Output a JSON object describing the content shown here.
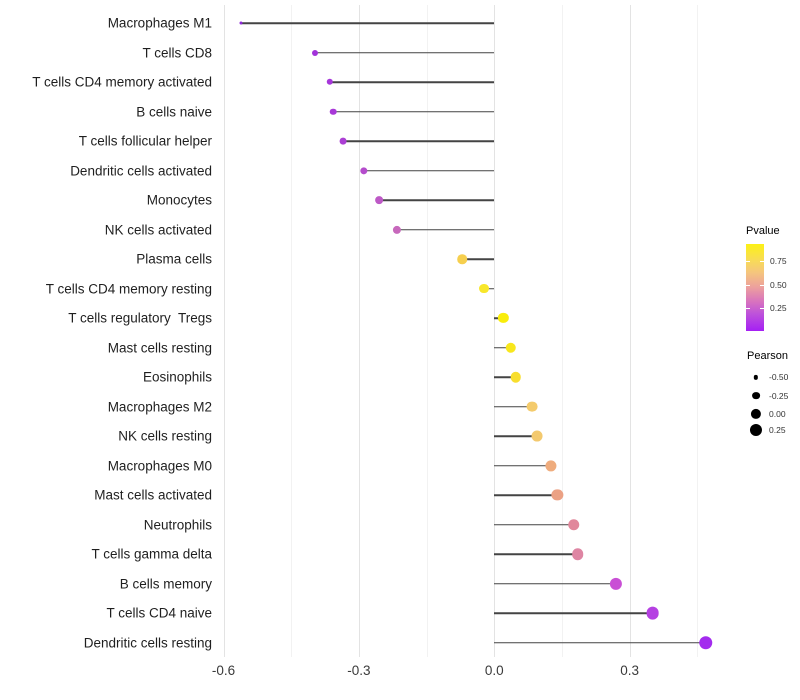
{
  "chart_data": {
    "type": "scatter",
    "variant": "lollipop",
    "title": "",
    "xlabel": "",
    "ylabel": "",
    "grid": true,
    "legend_position": "right",
    "categories": [
      "Macrophages M1",
      "T cells CD8",
      "T cells CD4 memory activated",
      "B cells naive",
      "T cells follicular helper",
      "Dendritic cells activated",
      "Monocytes",
      "NK cells activated",
      "Plasma cells",
      "T cells CD4 memory resting",
      "T cells regulatory  Tregs",
      "Mast cells resting",
      "Eosinophils",
      "Macrophages M2",
      "NK cells resting",
      "Macrophages M0",
      "Mast cells activated",
      "Neutrophils",
      "T cells gamma delta",
      "B cells memory",
      "T cells CD4 naive",
      "Dendritic cells resting"
    ],
    "series": [
      {
        "name": "Pearson",
        "values": [
          -0.562,
          -0.398,
          -0.365,
          -0.357,
          -0.335,
          -0.289,
          -0.256,
          -0.215,
          -0.071,
          -0.022,
          0.02,
          0.037,
          0.047,
          0.083,
          0.095,
          0.125,
          0.14,
          0.176,
          0.185,
          0.27,
          0.351,
          0.469
        ]
      }
    ],
    "point_colors": [
      "#8E28D8",
      "#A232DA",
      "#A637DA",
      "#A838D8",
      "#AB3FD4",
      "#B44CCC",
      "#BD59C6",
      "#C768BC",
      "#F6CF4E",
      "#F8E72B",
      "#F9ED0B",
      "#F8E71C",
      "#F8DE2E",
      "#F4CB6C",
      "#F3C96E",
      "#EFAC7D",
      "#EBA184",
      "#E1879B",
      "#DE85A3",
      "#C94FD5",
      "#B540E2",
      "#A32BEE"
    ],
    "xlim": [
      -0.61,
      0.52
    ],
    "x_major_gridlines": [
      -0.6,
      -0.3,
      0.0,
      0.3
    ],
    "x_minor_gridlines": [
      -0.45,
      -0.15,
      0.15,
      0.45
    ],
    "size_scale": {
      "maps": "Pearson",
      "min_value": -0.56,
      "max_value": 0.47,
      "min_radius_px": 1.5,
      "max_radius_px": 6.75
    },
    "color_scale": {
      "maps": "Pvalue",
      "low_color": "#A51FF4",
      "high_color": "#FCF115",
      "range": [
        0.01,
        0.93
      ]
    }
  },
  "x_axis": {
    "tick_labels": [
      "-0.6",
      "-0.3",
      "0.0",
      "0.3"
    ],
    "tick_values": [
      -0.6,
      -0.3,
      0.0,
      0.3
    ]
  },
  "legend_pvalue": {
    "title": "Pvalue",
    "tick_labels": [
      "0.75",
      "0.50",
      "0.25"
    ],
    "tick_values": [
      0.75,
      0.5,
      0.25
    ]
  },
  "legend_pearson": {
    "title": "Pearson",
    "entries": [
      {
        "label": "-0.50",
        "value": -0.5
      },
      {
        "label": "-0.25",
        "value": -0.25
      },
      {
        "label": "0.00",
        "value": 0.0
      },
      {
        "label": "0.25",
        "value": 0.25
      }
    ]
  }
}
